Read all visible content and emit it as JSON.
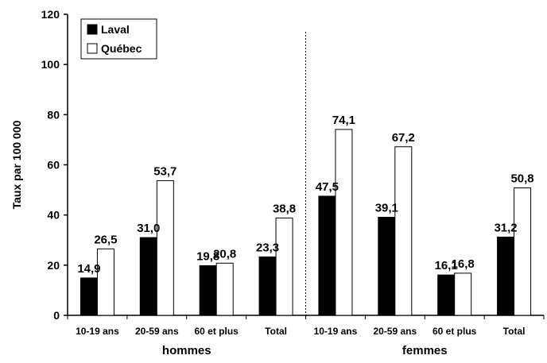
{
  "chart_data": {
    "type": "bar",
    "ylabel": "Taux par 100 000",
    "xlabel": "",
    "ylim": [
      0,
      120
    ],
    "yticks": [
      0,
      20,
      40,
      60,
      80,
      100,
      120
    ],
    "grid": false,
    "legend_position": "top-left",
    "groups": [
      {
        "label": "hommes",
        "categories": [
          "10-19 ans",
          "20-59 ans",
          "60 et plus",
          "Total"
        ]
      },
      {
        "label": "femmes",
        "categories": [
          "10-19 ans",
          "20-59 ans",
          "60 et plus",
          "Total"
        ]
      }
    ],
    "categories": [
      "10-19 ans",
      "20-59 ans",
      "60 et plus",
      "Total",
      "10-19 ans",
      "20-59 ans",
      "60 et plus",
      "Total"
    ],
    "series": [
      {
        "name": "Laval",
        "color": "#000000",
        "values": [
          14.9,
          31.0,
          19.8,
          23.3,
          47.5,
          39.1,
          16.1,
          31.2
        ],
        "labels": [
          "14,9",
          "31,0",
          "19,8",
          "23,3",
          "47,5",
          "39,1",
          "16,1",
          "31,2"
        ]
      },
      {
        "name": "Québec",
        "color": "#ffffff",
        "values": [
          26.5,
          53.7,
          20.8,
          38.8,
          74.1,
          67.2,
          16.8,
          50.8
        ],
        "labels": [
          "26,5",
          "53,7",
          "20,8",
          "38,8",
          "74,1",
          "67,2",
          "16,8",
          "50,8"
        ]
      }
    ]
  }
}
